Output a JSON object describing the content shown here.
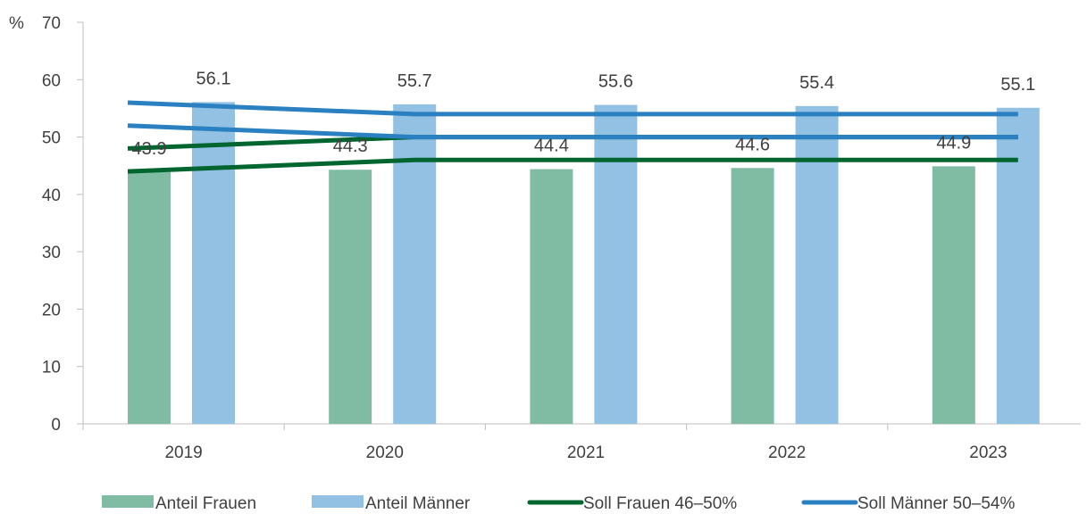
{
  "chart_data": {
    "type": "bar",
    "categories": [
      "2019",
      "2020",
      "2021",
      "2022",
      "2023"
    ],
    "y_unit": "%",
    "ylim": [
      0,
      70
    ],
    "yticks": [
      0,
      10,
      20,
      30,
      40,
      50,
      60,
      70
    ],
    "grid": false,
    "legend_position": "bottom",
    "series": [
      {
        "name": "Anteil Frauen",
        "kind": "bar",
        "color": "#80BCA3",
        "values": [
          43.9,
          44.3,
          44.4,
          44.6,
          44.9
        ],
        "labels": [
          "43.9",
          "44.3",
          "44.4",
          "44.6",
          "44.9"
        ]
      },
      {
        "name": "Anteil Männer",
        "kind": "bar",
        "color": "#92C1E3",
        "values": [
          56.1,
          55.7,
          55.6,
          55.4,
          55.1
        ],
        "labels": [
          "56.1",
          "55.7",
          "55.6",
          "55.4",
          "55.1"
        ]
      }
    ],
    "targets": [
      {
        "name": "Soll Frauen 46–50%",
        "color": "#00652E",
        "lower": [
          44,
          46,
          46,
          46,
          46
        ],
        "upper": [
          48,
          50,
          50,
          50,
          50
        ]
      },
      {
        "name": "Soll Männer 50–54%",
        "color": "#2A80C1",
        "lower": [
          52,
          50,
          50,
          50,
          50
        ],
        "upper": [
          56,
          54,
          54,
          54,
          54
        ]
      }
    ]
  }
}
